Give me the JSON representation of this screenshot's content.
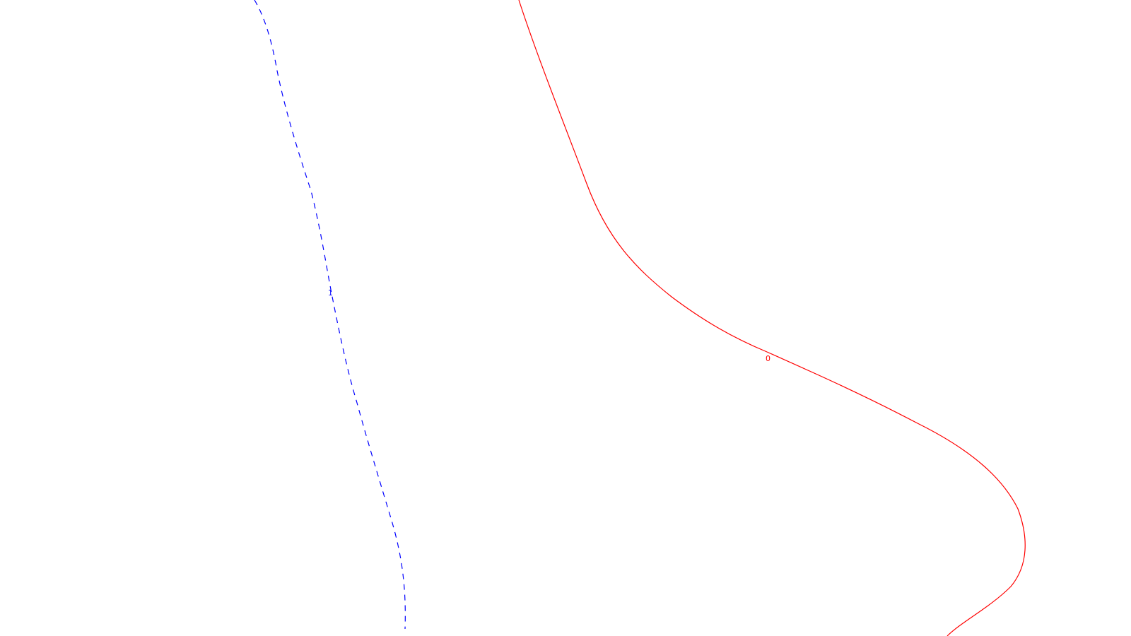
{
  "contours": [
    {
      "label": "0",
      "color": "#ff0000",
      "line_style": "solid"
    },
    {
      "label": "1",
      "color": "#0000ff",
      "line_style": "dashed"
    }
  ]
}
